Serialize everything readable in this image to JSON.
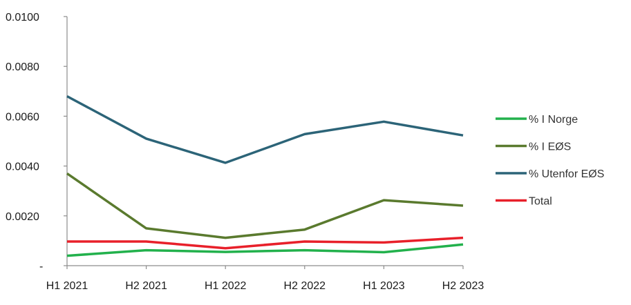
{
  "chart_data": {
    "type": "line",
    "title": "",
    "xlabel": "",
    "ylabel": "",
    "categories": [
      "H1 2021",
      "H2 2021",
      "H1 2022",
      "H2 2022",
      "H1 2023",
      "H2 2023"
    ],
    "ylim": [
      0,
      0.01
    ],
    "yticks": [
      {
        "value": 0,
        "label": "-"
      },
      {
        "value": 0.002,
        "label": "0.0020"
      },
      {
        "value": 0.004,
        "label": "0.0040"
      },
      {
        "value": 0.006,
        "label": "0.0060"
      },
      {
        "value": 0.008,
        "label": "0.0080"
      },
      {
        "value": 0.01,
        "label": "0.0100"
      }
    ],
    "grid": false,
    "legend_position": "right",
    "series": [
      {
        "name": "% I Norge",
        "color": "#22b14c",
        "values": [
          0.0004,
          0.00062,
          0.00055,
          0.00062,
          0.00054,
          0.00085
        ]
      },
      {
        "name": "% I EØS",
        "color": "#5a7a2e",
        "values": [
          0.0037,
          0.0015,
          0.00112,
          0.00145,
          0.00263,
          0.00241
        ]
      },
      {
        "name": "% Utenfor EØS",
        "color": "#2c6478",
        "values": [
          0.0068,
          0.0051,
          0.00413,
          0.00528,
          0.00578,
          0.00523
        ]
      },
      {
        "name": "Total",
        "color": "#e8202a",
        "values": [
          0.00097,
          0.00097,
          0.0007,
          0.00097,
          0.00093,
          0.00112
        ]
      }
    ]
  }
}
